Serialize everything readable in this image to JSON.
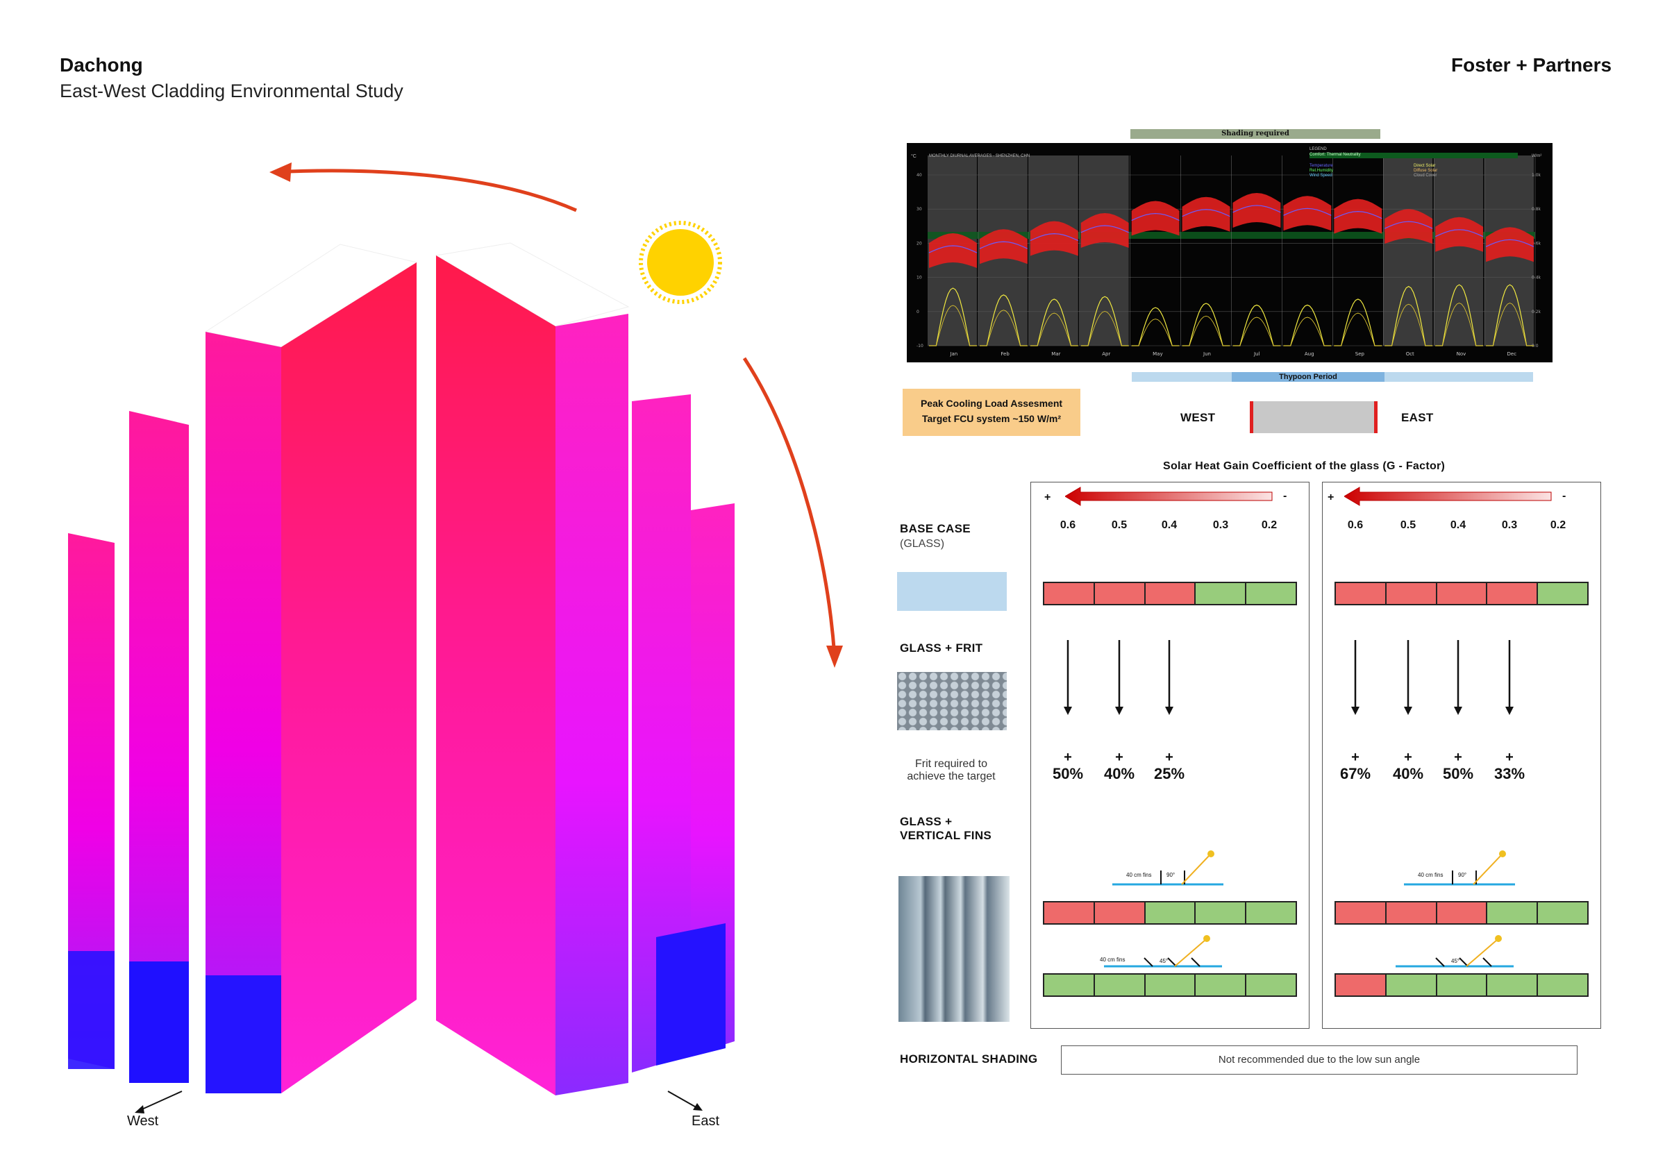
{
  "header": {
    "title": "Dachong",
    "subtitle": "East-West Cladding Environmental Study",
    "brand": "Foster + Partners"
  },
  "diagram": {
    "west_label": "West",
    "east_label": "East",
    "sun_color": "#ffd200",
    "arrow_color": "#e0401c"
  },
  "climate_chart": {
    "shading_required": "Shading required",
    "typhoon_period": "Thypoon Period",
    "title": "MONTHLY DIURNAL AVERAGES - SHENZHEN, CHN",
    "months": [
      "Jan",
      "Feb",
      "Mar",
      "Apr",
      "May",
      "Jun",
      "Jul",
      "Aug",
      "Sep",
      "Oct",
      "Nov",
      "Dec"
    ],
    "shaded_months": [
      "Jan",
      "Feb",
      "Mar",
      "Apr",
      "Oct",
      "Nov",
      "Dec"
    ],
    "legend": {
      "heading": "LEGEND",
      "comfort": "Comfort: Thermal Neutrality",
      "items": [
        "Temperature",
        "Rel.Humidity",
        "Wind Speed",
        "Direct Solar",
        "Diffuse Solar",
        "Cloud Cover"
      ]
    },
    "y_ticks_left": [
      "40",
      "30",
      "20",
      "10",
      "0",
      "-10"
    ],
    "y_ticks_right": [
      "1.0k",
      "0.8k",
      "0.6k",
      "0.4k",
      "0.2k",
      "0.0"
    ],
    "left_unit": "°C",
    "right_unit": "W/m²"
  },
  "load": {
    "line1": "Peak Cooling Load Assesment",
    "line2": "Target FCU system ~150 W/m²"
  },
  "orientation": {
    "west": "WEST",
    "east": "EAST"
  },
  "shgc": {
    "title": "Solar Heat Gain Coefficient of the glass (G - Factor)",
    "plus": "+",
    "minus": "-",
    "values": [
      "0.6",
      "0.5",
      "0.4",
      "0.3",
      "0.2"
    ]
  },
  "rows": {
    "base_case": "BASE CASE",
    "base_case_sub": "(GLASS)",
    "frit": "GLASS + FRIT",
    "frit_note1": "Frit required to",
    "frit_note2": "achieve the target",
    "fins_line1": "GLASS +",
    "fins_line2": "VERTICAL FINS",
    "horizontal": "HORIZONTAL SHADING",
    "horizontal_note": "Not recommended due to the low sun angle"
  },
  "west_panel": {
    "base": [
      "red",
      "red",
      "red",
      "green",
      "green"
    ],
    "frit_percent": [
      "50%",
      "40%",
      "25%"
    ],
    "fins90": [
      "red",
      "red",
      "green",
      "green",
      "green"
    ],
    "fins45": [
      "green",
      "green",
      "green",
      "green",
      "green"
    ]
  },
  "east_panel": {
    "base": [
      "red",
      "red",
      "red",
      "red",
      "green"
    ],
    "frit_percent": [
      "67%",
      "40%",
      "50%",
      "33%"
    ],
    "fins90": [
      "red",
      "red",
      "red",
      "green",
      "green"
    ],
    "fins45": [
      "red",
      "green",
      "green",
      "green",
      "green"
    ]
  },
  "fin_labels": {
    "fins_40": "40 cm fins",
    "angle90": "90°",
    "angle45": "45°"
  }
}
